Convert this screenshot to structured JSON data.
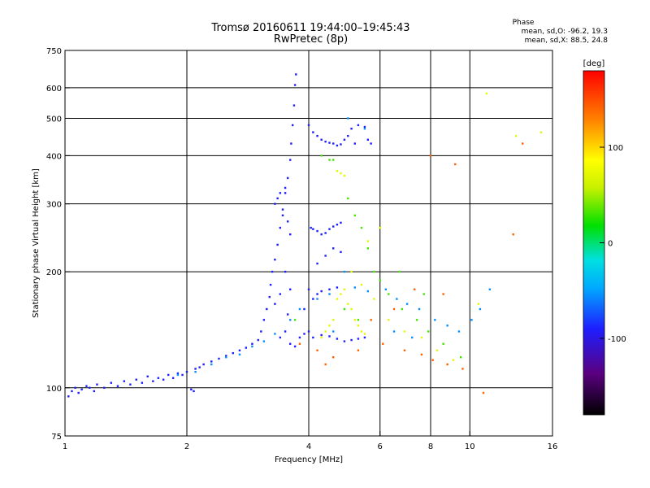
{
  "chart_data": {
    "type": "scatter",
    "title": "Tromsø 20160611 19:44:00–19:45:43",
    "subtitle": "RwPretec (8p)",
    "xlabel": "Frequency [MHz]",
    "ylabel": "Stationary phase Virtual Height [km]",
    "x_scale": "log",
    "y_scale": "log",
    "xlim": [
      1,
      16
    ],
    "ylim": [
      75,
      750
    ],
    "x_ticks": [
      "1",
      "2",
      "4",
      "6",
      "8",
      "10",
      "16"
    ],
    "x_tick_values": [
      1,
      2,
      4,
      6,
      8,
      10,
      16
    ],
    "y_ticks": [
      "75",
      "100",
      "200",
      "300",
      "400",
      "500",
      "600",
      "750"
    ],
    "y_tick_values": [
      75,
      100,
      200,
      300,
      400,
      500,
      600,
      750
    ],
    "grid_x": [
      2,
      4,
      6,
      8,
      10
    ],
    "grid_y": [
      100,
      200,
      300,
      400,
      500,
      600
    ],
    "grid": true,
    "colorbar": {
      "label": "[deg]",
      "range": [
        -180,
        180
      ],
      "ticks": [
        "100",
        "0",
        "-100"
      ],
      "tick_values": [
        100,
        0,
        -100
      ]
    },
    "phase_info": {
      "heading": "Phase",
      "o_line": "mean, sd,O: -96.2, 19.3",
      "x_line": "mean, sd,X:  88.5, 24.8"
    },
    "series": [
      {
        "color_value_deg": -100,
        "points": [
          [
            1.02,
            95
          ],
          [
            1.04,
            98
          ],
          [
            1.06,
            100
          ],
          [
            1.08,
            97
          ],
          [
            1.1,
            99
          ],
          [
            1.13,
            101
          ],
          [
            1.15,
            100
          ],
          [
            1.18,
            98
          ],
          [
            1.2,
            102
          ],
          [
            1.25,
            100
          ],
          [
            1.3,
            103
          ],
          [
            1.35,
            101
          ],
          [
            1.4,
            104
          ],
          [
            1.45,
            102
          ],
          [
            1.5,
            105
          ],
          [
            1.55,
            103
          ],
          [
            1.6,
            107
          ],
          [
            1.65,
            104
          ],
          [
            1.7,
            106
          ],
          [
            1.75,
            105
          ],
          [
            1.8,
            108
          ],
          [
            1.85,
            106
          ],
          [
            1.9,
            109
          ],
          [
            1.95,
            108
          ],
          [
            2.0,
            110
          ],
          [
            2.05,
            99
          ],
          [
            2.08,
            98
          ],
          [
            2.1,
            112
          ],
          [
            2.15,
            113
          ],
          [
            2.2,
            115
          ],
          [
            2.3,
            117
          ],
          [
            2.4,
            119
          ],
          [
            2.5,
            121
          ],
          [
            2.6,
            123
          ],
          [
            2.7,
            125
          ],
          [
            2.8,
            127
          ],
          [
            2.9,
            130
          ],
          [
            3.0,
            133
          ],
          [
            3.05,
            140
          ],
          [
            3.1,
            150
          ],
          [
            3.15,
            160
          ],
          [
            3.2,
            172
          ],
          [
            3.22,
            185
          ],
          [
            3.25,
            200
          ],
          [
            3.3,
            215
          ],
          [
            3.35,
            235
          ],
          [
            3.4,
            260
          ],
          [
            3.45,
            290
          ],
          [
            3.5,
            320
          ],
          [
            3.55,
            350
          ],
          [
            3.6,
            390
          ],
          [
            3.62,
            430
          ],
          [
            3.65,
            480
          ],
          [
            3.68,
            540
          ],
          [
            3.7,
            610
          ],
          [
            3.72,
            650
          ],
          [
            3.3,
            300
          ],
          [
            3.4,
            320
          ],
          [
            3.5,
            330
          ],
          [
            3.45,
            280
          ],
          [
            3.55,
            270
          ],
          [
            3.6,
            250
          ],
          [
            3.35,
            310
          ],
          [
            3.5,
            200
          ],
          [
            3.4,
            175
          ],
          [
            3.3,
            165
          ],
          [
            3.6,
            180
          ],
          [
            3.55,
            155
          ],
          [
            3.5,
            140
          ],
          [
            3.4,
            135
          ],
          [
            3.6,
            130
          ],
          [
            3.7,
            128
          ],
          [
            3.8,
            135
          ],
          [
            3.9,
            138
          ],
          [
            4.0,
            140
          ],
          [
            4.1,
            170
          ],
          [
            4.2,
            175
          ],
          [
            4.3,
            178
          ],
          [
            4.5,
            180
          ],
          [
            4.7,
            182
          ],
          [
            4.0,
            180
          ],
          [
            4.05,
            260
          ],
          [
            4.1,
            258
          ],
          [
            4.2,
            255
          ],
          [
            4.3,
            250
          ],
          [
            4.4,
            252
          ],
          [
            4.5,
            258
          ],
          [
            4.6,
            262
          ],
          [
            4.7,
            265
          ],
          [
            4.8,
            268
          ],
          [
            4.0,
            480
          ],
          [
            4.1,
            460
          ],
          [
            4.2,
            450
          ],
          [
            4.3,
            440
          ],
          [
            4.4,
            435
          ],
          [
            4.5,
            432
          ],
          [
            4.6,
            430
          ],
          [
            4.7,
            425
          ],
          [
            4.8,
            428
          ],
          [
            4.9,
            440
          ],
          [
            5.0,
            450
          ],
          [
            5.1,
            470
          ],
          [
            5.3,
            480
          ],
          [
            5.5,
            475
          ],
          [
            5.6,
            440
          ],
          [
            5.7,
            430
          ],
          [
            5.2,
            430
          ],
          [
            4.1,
            135
          ],
          [
            4.3,
            137
          ],
          [
            4.5,
            136
          ],
          [
            4.7,
            134
          ],
          [
            4.9,
            132
          ],
          [
            5.1,
            133
          ],
          [
            5.3,
            134
          ],
          [
            5.5,
            135
          ],
          [
            3.9,
            160
          ],
          [
            4.2,
            210
          ],
          [
            4.4,
            220
          ],
          [
            4.6,
            230
          ],
          [
            4.8,
            225
          ]
        ]
      },
      {
        "color_value_deg": -60,
        "points": [
          [
            1.9,
            108
          ],
          [
            2.1,
            110
          ],
          [
            2.3,
            115
          ],
          [
            2.5,
            120
          ],
          [
            2.7,
            122
          ],
          [
            2.9,
            128
          ],
          [
            3.1,
            132
          ],
          [
            3.3,
            138
          ],
          [
            3.6,
            150
          ],
          [
            3.8,
            160
          ],
          [
            4.2,
            170
          ],
          [
            4.5,
            175
          ],
          [
            4.9,
            200
          ],
          [
            5.2,
            182
          ],
          [
            5.6,
            178
          ],
          [
            6.2,
            180
          ],
          [
            6.6,
            170
          ],
          [
            7.0,
            165
          ],
          [
            7.5,
            160
          ],
          [
            8.2,
            150
          ],
          [
            8.8,
            145
          ],
          [
            9.4,
            140
          ],
          [
            10.1,
            150
          ],
          [
            10.6,
            160
          ],
          [
            11.2,
            180
          ],
          [
            4.6,
            140
          ],
          [
            5.0,
            500
          ],
          [
            5.5,
            470
          ],
          [
            6.5,
            140
          ],
          [
            7.2,
            135
          ]
        ]
      },
      {
        "color_value_deg": 20,
        "points": [
          [
            3.7,
            150
          ],
          [
            4.3,
            400
          ],
          [
            4.5,
            390
          ],
          [
            4.6,
            390
          ],
          [
            5.0,
            310
          ],
          [
            5.2,
            280
          ],
          [
            5.4,
            260
          ],
          [
            5.6,
            230
          ],
          [
            5.8,
            200
          ],
          [
            6.0,
            190
          ],
          [
            6.3,
            175
          ],
          [
            6.8,
            160
          ],
          [
            7.4,
            150
          ],
          [
            7.9,
            140
          ],
          [
            8.6,
            130
          ],
          [
            9.5,
            120
          ],
          [
            4.9,
            160
          ],
          [
            5.3,
            150
          ],
          [
            6.7,
            200
          ],
          [
            7.7,
            175
          ]
        ]
      },
      {
        "color_value_deg": 80,
        "points": [
          [
            4.7,
            170
          ],
          [
            4.8,
            175
          ],
          [
            4.9,
            180
          ],
          [
            5.0,
            165
          ],
          [
            5.1,
            160
          ],
          [
            5.2,
            150
          ],
          [
            5.3,
            145
          ],
          [
            5.4,
            140
          ],
          [
            5.5,
            138
          ],
          [
            4.6,
            150
          ],
          [
            4.5,
            145
          ],
          [
            4.4,
            140
          ],
          [
            4.3,
            135
          ],
          [
            4.7,
            365
          ],
          [
            4.8,
            360
          ],
          [
            4.9,
            355
          ],
          [
            5.4,
            185
          ],
          [
            5.8,
            170
          ],
          [
            6.3,
            150
          ],
          [
            6.9,
            140
          ],
          [
            7.6,
            135
          ],
          [
            8.3,
            125
          ],
          [
            9.1,
            118
          ],
          [
            10.5,
            165
          ],
          [
            11.0,
            580
          ],
          [
            13.0,
            450
          ],
          [
            15.0,
            460
          ],
          [
            5.1,
            200
          ],
          [
            5.6,
            240
          ],
          [
            6.0,
            260
          ]
        ]
      },
      {
        "color_value_deg": 150,
        "points": [
          [
            3.8,
            130
          ],
          [
            4.2,
            125
          ],
          [
            4.6,
            120
          ],
          [
            5.3,
            125
          ],
          [
            6.1,
            130
          ],
          [
            6.9,
            125
          ],
          [
            7.6,
            122
          ],
          [
            8.1,
            118
          ],
          [
            8.8,
            115
          ],
          [
            9.6,
            112
          ],
          [
            8.0,
            400
          ],
          [
            10.8,
            97
          ],
          [
            12.8,
            250
          ],
          [
            13.5,
            430
          ],
          [
            9.2,
            380
          ],
          [
            6.5,
            160
          ],
          [
            7.3,
            180
          ],
          [
            8.6,
            175
          ],
          [
            5.7,
            150
          ],
          [
            4.4,
            115
          ]
        ]
      }
    ]
  }
}
